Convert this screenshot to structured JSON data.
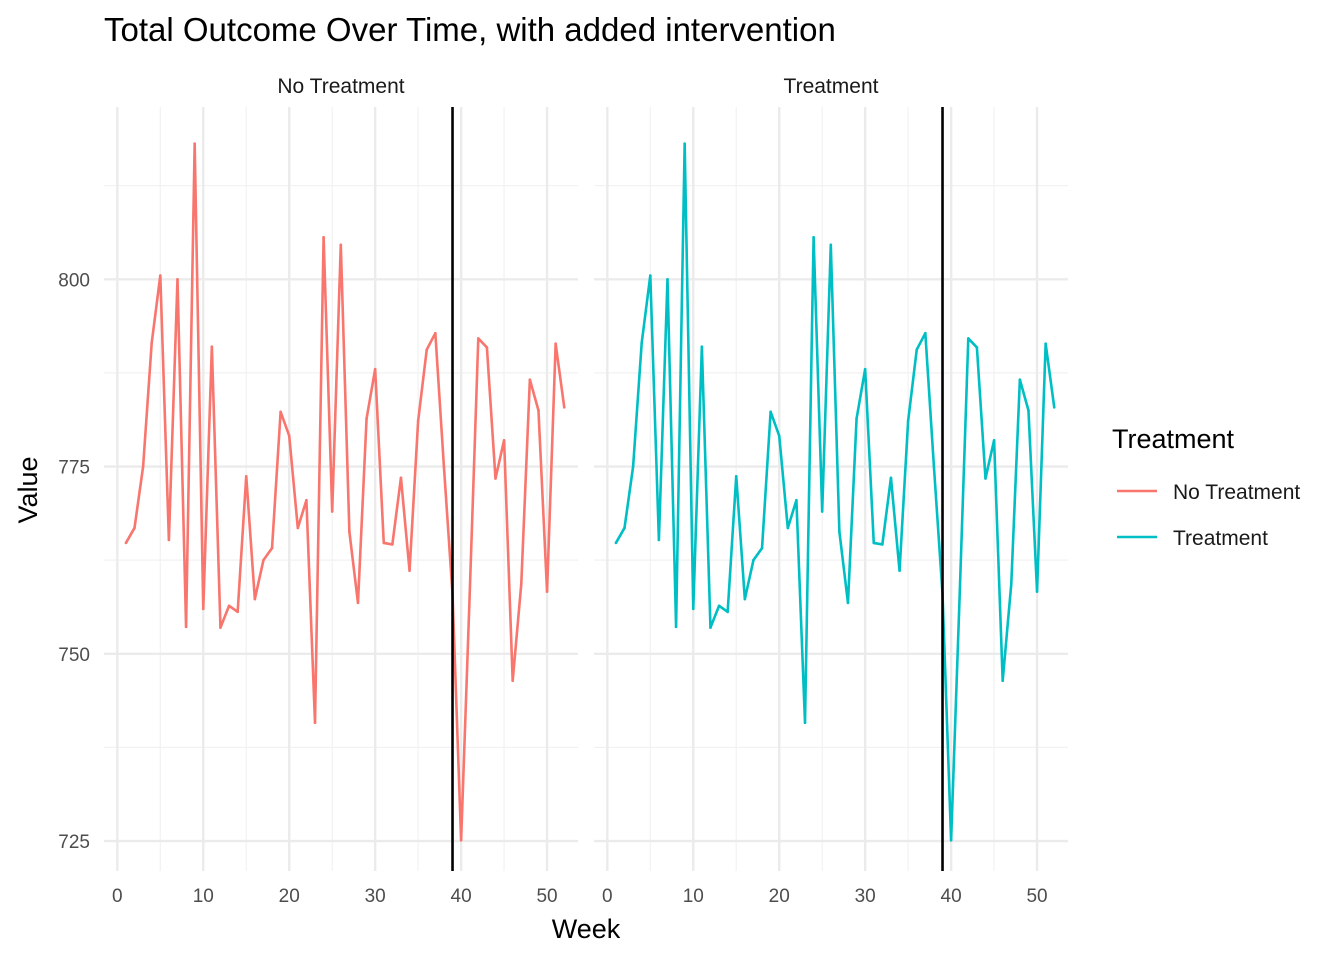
{
  "chart_data": {
    "type": "line",
    "title": "Total Outcome Over Time, with added intervention",
    "xlabel": "Week",
    "ylabel": "Value",
    "xlim": [
      1,
      52
    ],
    "ylim": [
      721,
      823
    ],
    "x_ticks": [
      0,
      10,
      20,
      30,
      40,
      50
    ],
    "y_ticks": [
      725,
      750,
      775,
      800
    ],
    "grid": true,
    "intervention_week": 39,
    "panels": [
      "No Treatment",
      "Treatment"
    ],
    "legend": {
      "title": "Treatment",
      "position": "right",
      "entries": [
        {
          "label": "No Treatment",
          "color": "#F8766D"
        },
        {
          "label": "Treatment",
          "color": "#00BFC4"
        }
      ]
    },
    "series": [
      {
        "name": "No Treatment",
        "panel": "No Treatment",
        "color": "#F8766D",
        "x": [
          1,
          2,
          3,
          4,
          5,
          6,
          7,
          8,
          9,
          10,
          11,
          12,
          13,
          14,
          15,
          16,
          17,
          18,
          19,
          20,
          21,
          22,
          23,
          24,
          25,
          26,
          27,
          28,
          29,
          30,
          31,
          32,
          33,
          34,
          35,
          36,
          37,
          38,
          39,
          40,
          41,
          42,
          43,
          44,
          45,
          46,
          47,
          48,
          49,
          50,
          51,
          52
        ],
        "values": [
          764.8,
          766.8,
          775.0,
          791.5,
          800.5,
          765.2,
          800.0,
          753.6,
          818.1,
          756.0,
          791.0,
          753.5,
          756.4,
          755.6,
          773.7,
          757.3,
          762.5,
          764.1,
          782.3,
          779.1,
          766.8,
          770.5,
          740.8,
          805.6,
          769.0,
          804.6,
          766.3,
          756.8,
          781.4,
          788.0,
          764.8,
          764.6,
          773.5,
          761.1,
          781.1,
          790.6,
          792.8,
          775.0,
          758.0,
          725.1,
          758.0,
          792.1,
          790.9,
          773.4,
          778.5,
          746.4,
          759.3,
          786.6,
          782.5,
          758.3,
          791.4,
          782.9
        ]
      },
      {
        "name": "Treatment",
        "panel": "Treatment",
        "color": "#00BFC4",
        "x": [
          1,
          2,
          3,
          4,
          5,
          6,
          7,
          8,
          9,
          10,
          11,
          12,
          13,
          14,
          15,
          16,
          17,
          18,
          19,
          20,
          21,
          22,
          23,
          24,
          25,
          26,
          27,
          28,
          29,
          30,
          31,
          32,
          33,
          34,
          35,
          36,
          37,
          38,
          39,
          40,
          41,
          42,
          43,
          44,
          45,
          46,
          47,
          48,
          49,
          50,
          51,
          52
        ],
        "values": [
          764.8,
          766.8,
          775.0,
          791.5,
          800.5,
          765.2,
          800.0,
          753.6,
          818.1,
          756.0,
          791.0,
          753.5,
          756.4,
          755.6,
          773.7,
          757.3,
          762.5,
          764.1,
          782.3,
          779.1,
          766.8,
          770.5,
          740.8,
          805.6,
          769.0,
          804.6,
          766.3,
          756.8,
          781.4,
          788.0,
          764.8,
          764.6,
          773.5,
          761.1,
          781.1,
          790.6,
          792.8,
          775.0,
          758.0,
          725.1,
          758.0,
          792.1,
          790.9,
          773.4,
          778.5,
          746.4,
          759.3,
          786.6,
          782.5,
          758.3,
          791.4,
          782.9
        ]
      }
    ]
  }
}
